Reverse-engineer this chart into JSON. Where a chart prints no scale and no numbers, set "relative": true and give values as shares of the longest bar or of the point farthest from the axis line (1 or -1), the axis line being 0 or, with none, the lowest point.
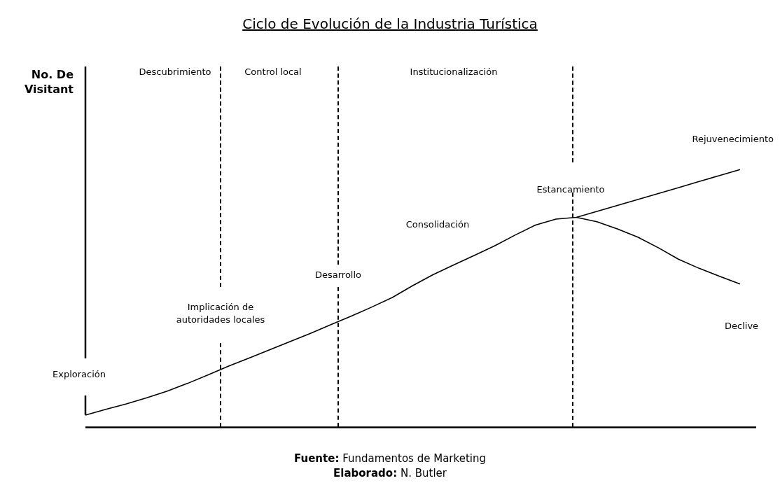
{
  "chart_data": {
    "type": "line",
    "title": "Ciclo de Evolución de la Industria Turística",
    "relative": true,
    "legend": false,
    "marker": "none",
    "line_style": "solid",
    "categories": [
      null,
      null,
      null,
      null,
      null,
      null,
      null,
      null,
      null,
      null,
      null,
      null,
      null,
      null,
      null,
      null,
      null,
      null,
      null,
      null,
      null,
      null,
      null,
      null,
      null,
      null,
      null,
      null,
      null,
      null,
      null,
      null,
      null
    ],
    "series": [
      {
        "color": "#000000",
        "values": [
          0.048,
          0.07,
          0.091,
          0.115,
          0.141,
          0.171,
          0.204,
          0.238,
          0.269,
          0.301,
          0.333,
          0.365,
          0.399,
          0.432,
          0.467,
          0.504,
          0.55,
          0.593,
          0.63,
          0.667,
          0.704,
          0.746,
          0.785,
          0.808,
          0.815,
          0.838,
          0.861,
          0.884,
          0.907,
          0.93,
          0.954,
          0.977,
          1
        ]
      },
      {
        "color": "#000000",
        "values": [
          null,
          null,
          null,
          null,
          null,
          null,
          null,
          null,
          null,
          null,
          null,
          null,
          null,
          null,
          null,
          null,
          null,
          null,
          null,
          null,
          null,
          null,
          null,
          null,
          0.815,
          0.798,
          0.77,
          0.738,
          0.697,
          0.652,
          0.617,
          0.586,
          0.556
        ]
      }
    ],
    "annotations": [
      "Descubrimiento",
      "Control local",
      "Institucionalización",
      "Rejuvenecimiento",
      "Estancamiento",
      "Consolidación",
      "Desarrollo",
      "Implicación de\nautoridades locales",
      "Declive",
      "Exploración",
      "Fuente: Fundamentos de Marketing",
      "Elaborado: N. Butler",
      "No. De Visitant"
    ]
  }
}
